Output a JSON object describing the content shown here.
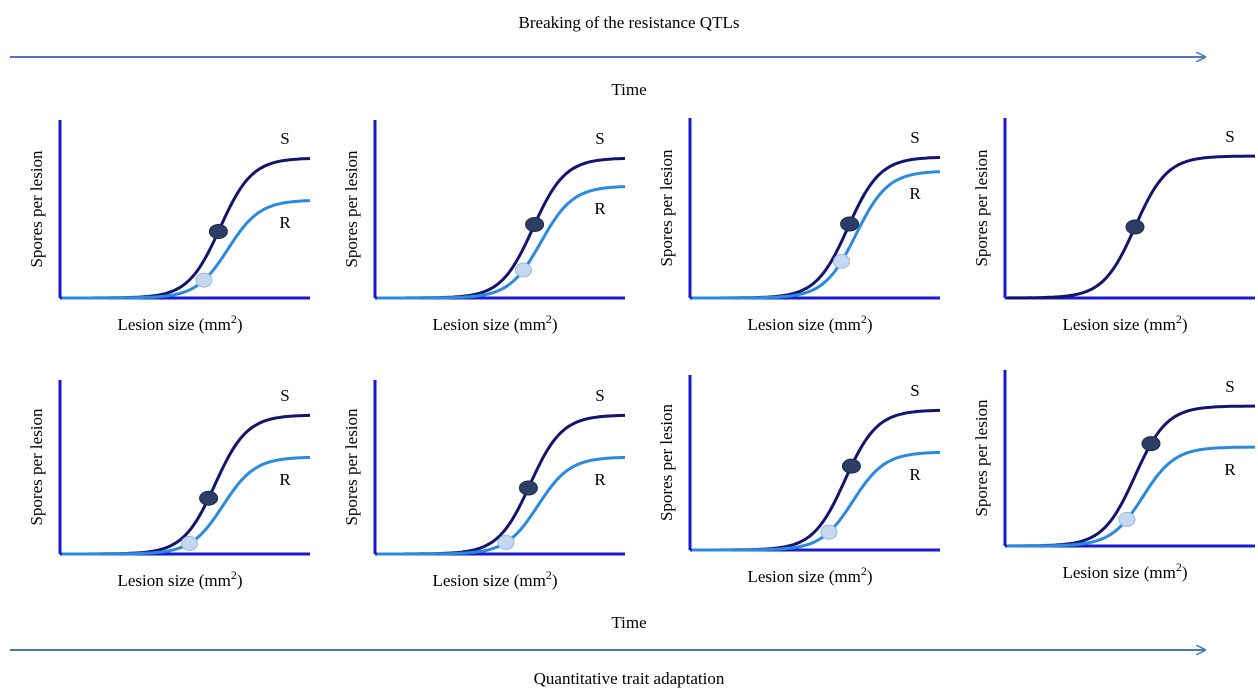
{
  "header": {
    "title": "Breaking of the resistance QTLs",
    "time": "Time"
  },
  "rows": [
    {
      "panels": [
        {
          "y_label": "Spores per lesion",
          "x_label": "Lesion size (mm",
          "x_label_sup": "2",
          "x_label_end": ")",
          "curves": [
            "S",
            "R"
          ]
        },
        {
          "y_label": "Spores per lesion",
          "x_label": "Lesion size (mm",
          "x_label_sup": "2",
          "x_label_end": ")",
          "curves": [
            "S",
            "R"
          ]
        },
        {
          "y_label": "Spores per lesion",
          "x_label": "Lesion size (mm",
          "x_label_sup": "2",
          "x_label_end": ")",
          "curves": [
            "S",
            "R"
          ]
        },
        {
          "y_label": "Spores per lesion",
          "x_label": "Lesion size (mm",
          "x_label_sup": "2",
          "x_label_end": ")",
          "curves": [
            "S"
          ]
        }
      ]
    },
    {
      "panels": [
        {
          "y_label": "Spores per lesion",
          "x_label": "Lesion size (mm",
          "x_label_sup": "2",
          "x_label_end": ")",
          "curves": [
            "S",
            "R"
          ]
        },
        {
          "y_label": "Spores per lesion",
          "x_label": "Lesion size (mm",
          "x_label_sup": "2",
          "x_label_end": ")",
          "curves": [
            "S",
            "R"
          ]
        },
        {
          "y_label": "Spores per lesion",
          "x_label": "Lesion size (mm",
          "x_label_sup": "2",
          "x_label_end": ")",
          "curves": [
            "S",
            "R"
          ]
        },
        {
          "y_label": "Spores per lesion",
          "x_label": "Lesion size (mm",
          "x_label_sup": "2",
          "x_label_end": ")",
          "curves": [
            "S",
            "R"
          ]
        }
      ]
    }
  ],
  "footer": {
    "time": "Time",
    "title": "Quantitative trait adaptation"
  }
}
